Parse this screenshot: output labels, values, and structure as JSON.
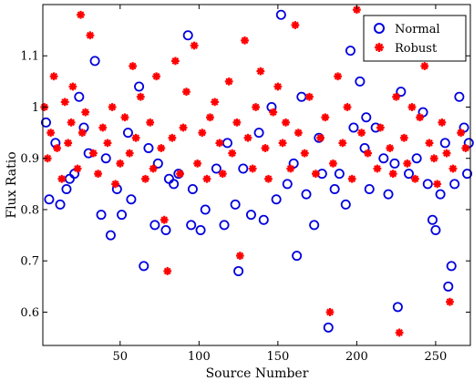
{
  "chart_data": {
    "type": "scatter",
    "title": "",
    "xlabel": "Source Number",
    "ylabel": "Flux Ratio",
    "xlim": [
      1,
      272
    ],
    "ylim": [
      0.535,
      1.2
    ],
    "xticks": [
      50,
      100,
      150,
      200,
      250
    ],
    "yticks": [
      0.6,
      0.7,
      0.8,
      0.9,
      1.0,
      1.1
    ],
    "ytick_labels": [
      "0.6",
      "0.7",
      "0.8",
      "0.9",
      "1",
      "1.1"
    ],
    "grid": false,
    "legend_position": "top-right",
    "series": [
      {
        "name": "Normal",
        "marker": "circle",
        "color": "#0000dd",
        "x": [
          3,
          5,
          9,
          12,
          16,
          18,
          21,
          24,
          27,
          30,
          34,
          38,
          41,
          44,
          48,
          51,
          55,
          57,
          62,
          65,
          68,
          72,
          74,
          79,
          81,
          84,
          87,
          93,
          95,
          96,
          101,
          104,
          111,
          116,
          118,
          123,
          125,
          128,
          133,
          138,
          141,
          146,
          149,
          152,
          156,
          160,
          162,
          165,
          168,
          173,
          176,
          178,
          182,
          186,
          189,
          193,
          196,
          198,
          202,
          205,
          206,
          208,
          212,
          217,
          220,
          224,
          226,
          228,
          233,
          238,
          242,
          245,
          248,
          250,
          253,
          256,
          258,
          260,
          262,
          265,
          268,
          270,
          271
        ],
        "y": [
          0.97,
          0.82,
          0.93,
          0.81,
          0.84,
          0.86,
          0.87,
          1.02,
          0.96,
          0.91,
          1.09,
          0.79,
          0.9,
          0.75,
          0.84,
          0.79,
          0.95,
          0.82,
          1.04,
          0.69,
          0.92,
          0.77,
          0.89,
          0.76,
          0.86,
          0.85,
          0.87,
          1.14,
          0.77,
          0.84,
          0.76,
          0.8,
          0.88,
          0.77,
          0.93,
          0.81,
          0.68,
          0.88,
          0.79,
          0.95,
          0.78,
          1.0,
          0.82,
          1.18,
          0.85,
          0.89,
          0.71,
          1.02,
          0.83,
          0.77,
          0.94,
          0.87,
          0.57,
          0.84,
          0.87,
          0.81,
          1.11,
          0.96,
          1.05,
          0.92,
          0.98,
          0.84,
          0.96,
          0.9,
          0.83,
          0.89,
          0.61,
          1.03,
          0.87,
          0.9,
          0.99,
          0.85,
          0.78,
          0.76,
          0.83,
          0.93,
          0.65,
          0.69,
          0.85,
          1.02,
          0.96,
          0.87,
          0.93
        ]
      },
      {
        "name": "Robust",
        "marker": "asterisk",
        "color": "#ff0000",
        "x": [
          2,
          4,
          6,
          8,
          10,
          13,
          15,
          17,
          19,
          20,
          23,
          25,
          26,
          28,
          31,
          33,
          36,
          39,
          42,
          45,
          47,
          50,
          53,
          56,
          58,
          60,
          63,
          66,
          69,
          71,
          73,
          76,
          78,
          80,
          83,
          85,
          88,
          90,
          92,
          97,
          99,
          102,
          105,
          107,
          110,
          113,
          115,
          119,
          121,
          124,
          126,
          129,
          131,
          134,
          136,
          139,
          142,
          144,
          147,
          150,
          153,
          155,
          158,
          161,
          163,
          167,
          170,
          174,
          177,
          180,
          183,
          185,
          188,
          191,
          194,
          197,
          200,
          203,
          207,
          210,
          213,
          215,
          218,
          221,
          223,
          225,
          227,
          230,
          232,
          235,
          237,
          240,
          243,
          246,
          249,
          251,
          254,
          257,
          259,
          261,
          263,
          266,
          269
        ],
        "y": [
          1.0,
          0.9,
          0.95,
          1.06,
          0.92,
          0.86,
          1.01,
          0.93,
          0.97,
          1.04,
          0.88,
          1.18,
          0.95,
          0.99,
          1.14,
          0.91,
          0.87,
          0.96,
          0.93,
          1.0,
          0.85,
          0.89,
          0.98,
          0.91,
          1.08,
          0.94,
          1.02,
          0.86,
          0.97,
          0.88,
          1.06,
          0.92,
          0.78,
          0.68,
          0.94,
          1.09,
          0.87,
          0.96,
          1.03,
          1.12,
          0.89,
          0.95,
          0.86,
          0.98,
          1.01,
          0.93,
          0.87,
          1.05,
          0.91,
          0.97,
          0.71,
          1.13,
          0.94,
          0.88,
          1.0,
          1.07,
          0.92,
          0.86,
          0.99,
          1.04,
          0.93,
          0.97,
          0.88,
          1.16,
          0.95,
          0.91,
          1.02,
          0.87,
          0.94,
          0.98,
          0.6,
          0.89,
          1.06,
          0.93,
          1.0,
          0.86,
          1.19,
          0.95,
          0.91,
          1.1,
          0.88,
          0.96,
          1.14,
          0.92,
          0.87,
          1.02,
          0.56,
          0.94,
          0.89,
          1.0,
          0.86,
          0.98,
          1.08,
          0.93,
          0.9,
          0.85,
          0.97,
          0.91,
          0.62,
          0.88,
          1.12,
          0.95,
          0.92
        ]
      }
    ]
  }
}
